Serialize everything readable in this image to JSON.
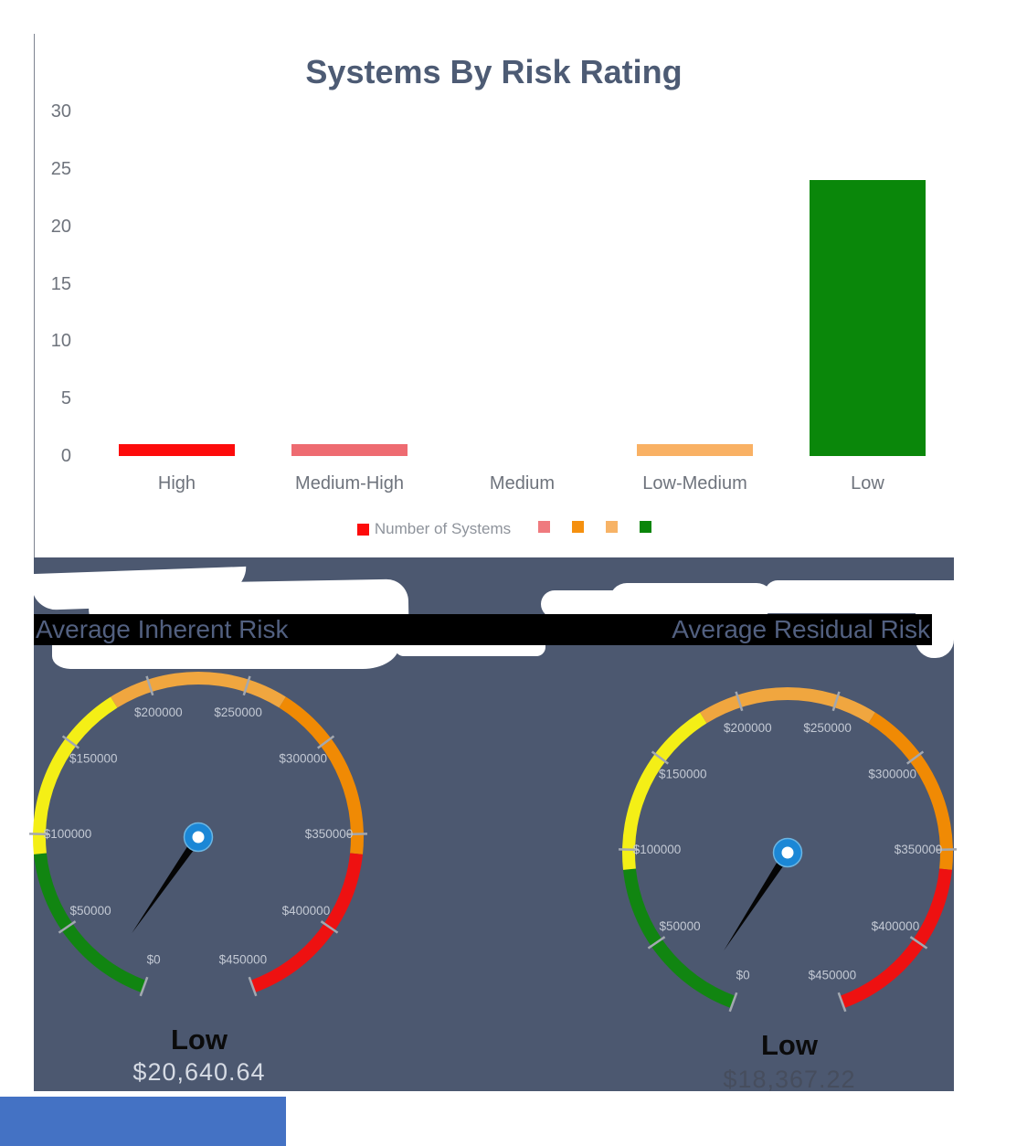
{
  "chart_data": [
    {
      "type": "bar",
      "title": "Systems By Risk Rating",
      "categories": [
        "High",
        "Medium-High",
        "Medium",
        "Low-Medium",
        "Low"
      ],
      "values": [
        1,
        1,
        0,
        1,
        24
      ],
      "bar_colors": [
        "#fd0b0b",
        "#ee6b71",
        "#f78c09",
        "#f9b164",
        "#0a870a"
      ],
      "ylim": [
        0,
        30
      ],
      "yticks": [
        0,
        5,
        10,
        15,
        20,
        25,
        30
      ],
      "grid": false,
      "legend": {
        "label": "Number of Systems",
        "swatch_colors": [
          "#fd0b0b",
          "#ef7a7e",
          "#f5900f",
          "#f7b366",
          "#0a850a"
        ],
        "position": "bottom-center"
      }
    },
    {
      "type": "gauge",
      "title": "Average Inherent Risk",
      "rating": "Low",
      "value": 20640.64,
      "value_display": "$20,640.64",
      "min": 0,
      "max": 450000,
      "start_angle_deg": 200,
      "sweep_deg": 320,
      "tick_labels": [
        "$0",
        "$50000",
        "$100000",
        "$150000",
        "$200000",
        "$250000",
        "$300000",
        "$350000",
        "$400000",
        "$450000"
      ],
      "segments": [
        {
          "from": 0,
          "to": 90000,
          "color": "#118511"
        },
        {
          "from": 90000,
          "to": 180000,
          "color": "#f4ef16"
        },
        {
          "from": 180000,
          "to": 270000,
          "color": "#f0a63f"
        },
        {
          "from": 270000,
          "to": 360000,
          "color": "#f08a04"
        },
        {
          "from": 360000,
          "to": 450000,
          "color": "#ee1111"
        }
      ],
      "needle_color": "#050505",
      "hub_color": "#1b87d6",
      "label_color": "#c3c9d4",
      "tick_color": "#a3a8b0"
    },
    {
      "type": "gauge",
      "title": "Average Residual Risk",
      "rating": "Low",
      "value": 18367.22,
      "value_display": "$18,367.22",
      "min": 0,
      "max": 450000,
      "start_angle_deg": 200,
      "sweep_deg": 320,
      "tick_labels": [
        "$0",
        "$50000",
        "$100000",
        "$150000",
        "$200000",
        "$250000",
        "$300000",
        "$350000",
        "$400000",
        "$450000"
      ],
      "segments": [
        {
          "from": 0,
          "to": 90000,
          "color": "#118511"
        },
        {
          "from": 90000,
          "to": 180000,
          "color": "#f4ef16"
        },
        {
          "from": 180000,
          "to": 270000,
          "color": "#f0a63f"
        },
        {
          "from": 270000,
          "to": 360000,
          "color": "#f08a04"
        },
        {
          "from": 360000,
          "to": 450000,
          "color": "#ee1111"
        }
      ],
      "needle_color": "#050505",
      "hub_color": "#1b87d6",
      "label_color": "#c3c9d4",
      "tick_color": "#a3a8b0"
    }
  ],
  "colors": {
    "chart_title": "#4d5b74",
    "axis_text": "#6e737c",
    "panel_background": "#4c5870",
    "header_bar": "#000000",
    "header_text": "#526080",
    "bottom_bar": "#4472c4"
  }
}
